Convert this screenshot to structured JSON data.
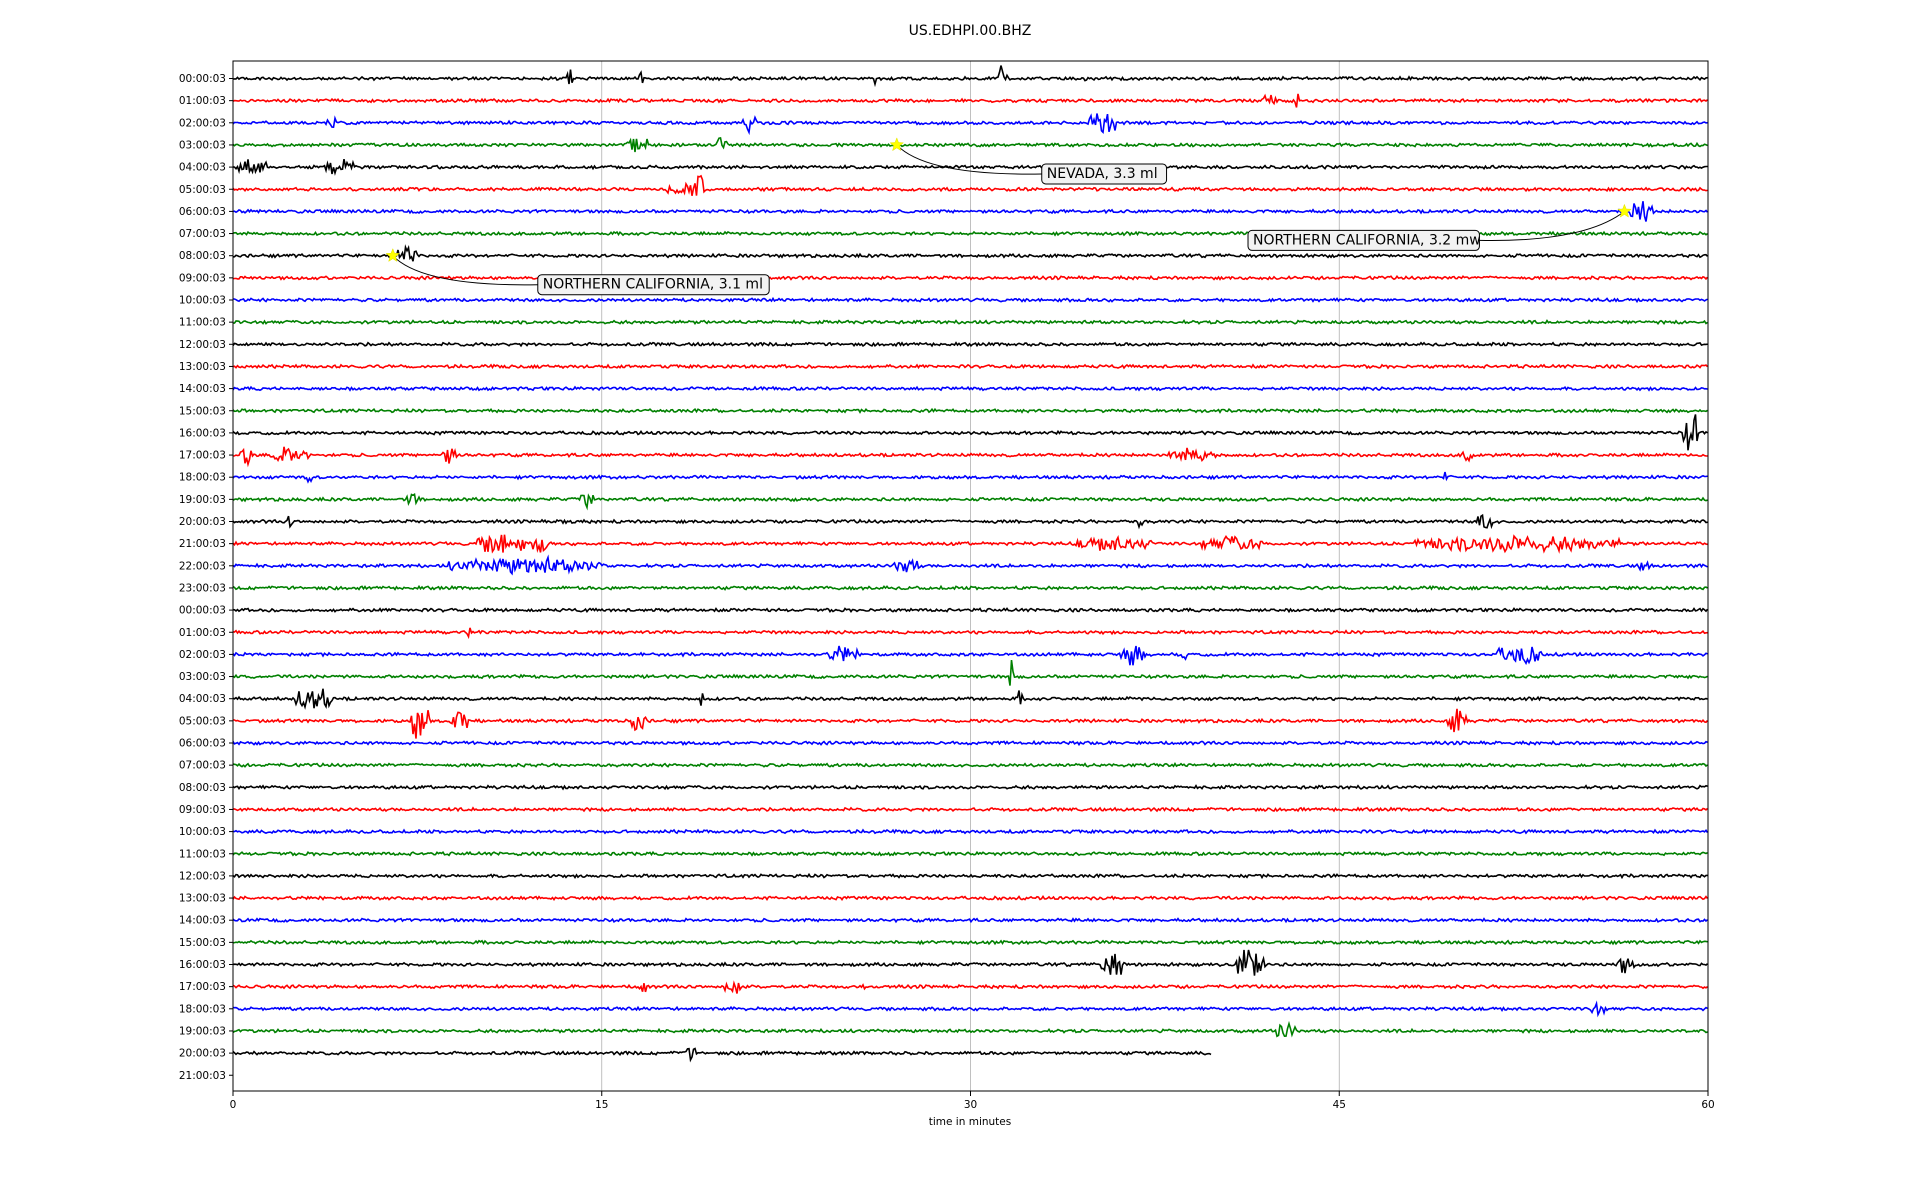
{
  "chart_data": {
    "type": "line",
    "title": "US.EDHPI.00.BHZ",
    "xlabel": "time in minutes",
    "ylabel": "",
    "xlim": [
      0,
      60
    ],
    "x_ticks": [
      0,
      15,
      30,
      45,
      60
    ],
    "x_tick_labels": [
      "0",
      "15",
      "30",
      "45",
      "60"
    ],
    "grid": "vertical lines at x ticks",
    "legend": "none",
    "colors_cycle": [
      "#000000",
      "#ff0000",
      "#0000ff",
      "#008000"
    ],
    "marker_color": "#ffff00",
    "rows": [
      {
        "label": "00:00:03",
        "end": 60,
        "bursts": [
          [
            13.7,
            0.1,
            1.0
          ],
          [
            16.6,
            0.1,
            0.6
          ],
          [
            26.1,
            0.1,
            0.6
          ],
          [
            31.3,
            0.2,
            1.2
          ],
          [
            34.7,
            0.1,
            0.9
          ]
        ]
      },
      {
        "label": "01:00:03",
        "end": 60,
        "bursts": [
          [
            42.2,
            0.3,
            0.5
          ],
          [
            43.3,
            0.1,
            1.0
          ]
        ]
      },
      {
        "label": "02:00:03",
        "end": 60,
        "bursts": [
          [
            4.0,
            0.2,
            0.6
          ],
          [
            21.0,
            0.3,
            0.7
          ],
          [
            35.4,
            0.6,
            1.0
          ]
        ]
      },
      {
        "label": "03:00:03",
        "end": 60,
        "bursts": [
          [
            16.4,
            0.5,
            0.8
          ],
          [
            19.9,
            0.2,
            0.9
          ]
        ]
      },
      {
        "label": "04:00:03",
        "end": 60,
        "bursts": [
          [
            0.8,
            0.6,
            0.6
          ],
          [
            4.3,
            0.6,
            0.6
          ]
        ]
      },
      {
        "label": "05:00:03",
        "end": 60,
        "bursts": [
          [
            18.4,
            0.8,
            0.5
          ],
          [
            19.0,
            0.2,
            1.5
          ]
        ]
      },
      {
        "label": "06:00:03",
        "end": 60,
        "bursts": [
          [
            57.3,
            0.5,
            0.8
          ]
        ]
      },
      {
        "label": "07:00:03",
        "end": 60,
        "bursts": []
      },
      {
        "label": "08:00:03",
        "end": 60,
        "bursts": [
          [
            7.1,
            0.4,
            1.0
          ]
        ]
      },
      {
        "label": "09:00:03",
        "end": 60,
        "bursts": []
      },
      {
        "label": "10:00:03",
        "end": 60,
        "bursts": []
      },
      {
        "label": "11:00:03",
        "end": 60,
        "bursts": []
      },
      {
        "label": "12:00:03",
        "end": 60,
        "bursts": []
      },
      {
        "label": "13:00:03",
        "end": 60,
        "bursts": []
      },
      {
        "label": "14:00:03",
        "end": 60,
        "bursts": []
      },
      {
        "label": "15:00:03",
        "end": 60,
        "bursts": []
      },
      {
        "label": "16:00:03",
        "end": 60,
        "bursts": [
          [
            59.2,
            0.3,
            1.2
          ],
          [
            59.5,
            0.1,
            2.2
          ]
        ]
      },
      {
        "label": "17:00:03",
        "end": 60,
        "bursts": [
          [
            0.5,
            0.3,
            0.8
          ],
          [
            2.3,
            0.8,
            0.6
          ],
          [
            8.8,
            0.3,
            0.7
          ],
          [
            39.0,
            1.0,
            0.5
          ],
          [
            50.2,
            0.2,
            0.6
          ]
        ]
      },
      {
        "label": "18:00:03",
        "end": 60,
        "bursts": [
          [
            3.1,
            0.1,
            0.6
          ],
          [
            49.3,
            0.1,
            0.6
          ]
        ]
      },
      {
        "label": "19:00:03",
        "end": 60,
        "bursts": [
          [
            7.3,
            0.3,
            0.5
          ],
          [
            14.4,
            0.3,
            0.6
          ]
        ]
      },
      {
        "label": "20:00:03",
        "end": 60,
        "bursts": [
          [
            2.3,
            0.1,
            0.7
          ],
          [
            13.6,
            0.2,
            0.6
          ],
          [
            36.9,
            0.1,
            0.6
          ],
          [
            50.9,
            0.3,
            1.1
          ]
        ]
      },
      {
        "label": "21:00:03",
        "end": 60,
        "bursts": [
          [
            10.9,
            1.0,
            0.9
          ],
          [
            12.5,
            0.3,
            0.8
          ],
          [
            35.8,
            1.6,
            0.5
          ],
          [
            40.6,
            1.3,
            0.5
          ],
          [
            52.2,
            4.2,
            0.6
          ]
        ]
      },
      {
        "label": "22:00:03",
        "end": 60,
        "bursts": [
          [
            11.9,
            3.2,
            0.6
          ],
          [
            27.4,
            0.5,
            0.7
          ],
          [
            57.4,
            0.2,
            0.5
          ]
        ]
      },
      {
        "label": "23:00:03",
        "end": 60,
        "bursts": []
      },
      {
        "label": "00:00:03",
        "end": 60,
        "bursts": []
      },
      {
        "label": "01:00:03",
        "end": 60,
        "bursts": [
          [
            9.6,
            0.1,
            0.5
          ]
        ]
      },
      {
        "label": "02:00:03",
        "end": 60,
        "bursts": [
          [
            24.8,
            0.6,
            0.6
          ],
          [
            36.6,
            0.5,
            0.8
          ],
          [
            38.7,
            0.1,
            0.6
          ],
          [
            52.3,
            1.0,
            0.7
          ]
        ]
      },
      {
        "label": "03:00:03",
        "end": 60,
        "bursts": [
          [
            31.7,
            0.1,
            2.0
          ]
        ]
      },
      {
        "label": "04:00:03",
        "end": 60,
        "bursts": [
          [
            3.3,
            0.8,
            0.9
          ],
          [
            19.1,
            0.1,
            1.0
          ],
          [
            32.0,
            0.1,
            0.6
          ]
        ]
      },
      {
        "label": "05:00:03",
        "end": 60,
        "bursts": [
          [
            7.6,
            0.4,
            1.6
          ],
          [
            9.2,
            0.4,
            1.0
          ],
          [
            16.5,
            0.3,
            1.0
          ],
          [
            49.8,
            0.4,
            1.0
          ]
        ]
      },
      {
        "label": "06:00:03",
        "end": 60,
        "bursts": []
      },
      {
        "label": "07:00:03",
        "end": 60,
        "bursts": []
      },
      {
        "label": "08:00:03",
        "end": 60,
        "bursts": []
      },
      {
        "label": "09:00:03",
        "end": 60,
        "bursts": []
      },
      {
        "label": "10:00:03",
        "end": 60,
        "bursts": []
      },
      {
        "label": "11:00:03",
        "end": 60,
        "bursts": []
      },
      {
        "label": "12:00:03",
        "end": 60,
        "bursts": []
      },
      {
        "label": "13:00:03",
        "end": 60,
        "bursts": []
      },
      {
        "label": "14:00:03",
        "end": 60,
        "bursts": []
      },
      {
        "label": "15:00:03",
        "end": 60,
        "bursts": []
      },
      {
        "label": "16:00:03",
        "end": 60,
        "bursts": [
          [
            35.8,
            0.5,
            1.2
          ],
          [
            41.4,
            0.6,
            1.6
          ],
          [
            56.6,
            0.4,
            0.6
          ]
        ]
      },
      {
        "label": "17:00:03",
        "end": 60,
        "bursts": [
          [
            16.7,
            0.2,
            0.6
          ],
          [
            20.4,
            0.4,
            0.7
          ],
          [
            25.7,
            0.1,
            0.5
          ],
          [
            50.9,
            0.1,
            0.6
          ]
        ]
      },
      {
        "label": "18:00:03",
        "end": 60,
        "bursts": [
          [
            55.5,
            0.3,
            0.5
          ]
        ]
      },
      {
        "label": "19:00:03",
        "end": 60,
        "bursts": [
          [
            42.8,
            0.4,
            0.7
          ]
        ]
      },
      {
        "label": "20:00:03",
        "end": 39.8,
        "bursts": [
          [
            18.6,
            0.2,
            0.6
          ]
        ]
      },
      {
        "label": "21:00:03",
        "end": 0,
        "bursts": []
      }
    ],
    "annotations": [
      {
        "text": "NEVADA, 3.3 ml",
        "row": 3,
        "x": 27.0
      },
      {
        "text": "NORTHERN CALIFORNIA, 3.2 mw",
        "row": 6,
        "x": 56.6
      },
      {
        "text": "NORTHERN CALIFORNIA, 3.1 ml",
        "row": 8,
        "x": 6.5
      }
    ]
  }
}
